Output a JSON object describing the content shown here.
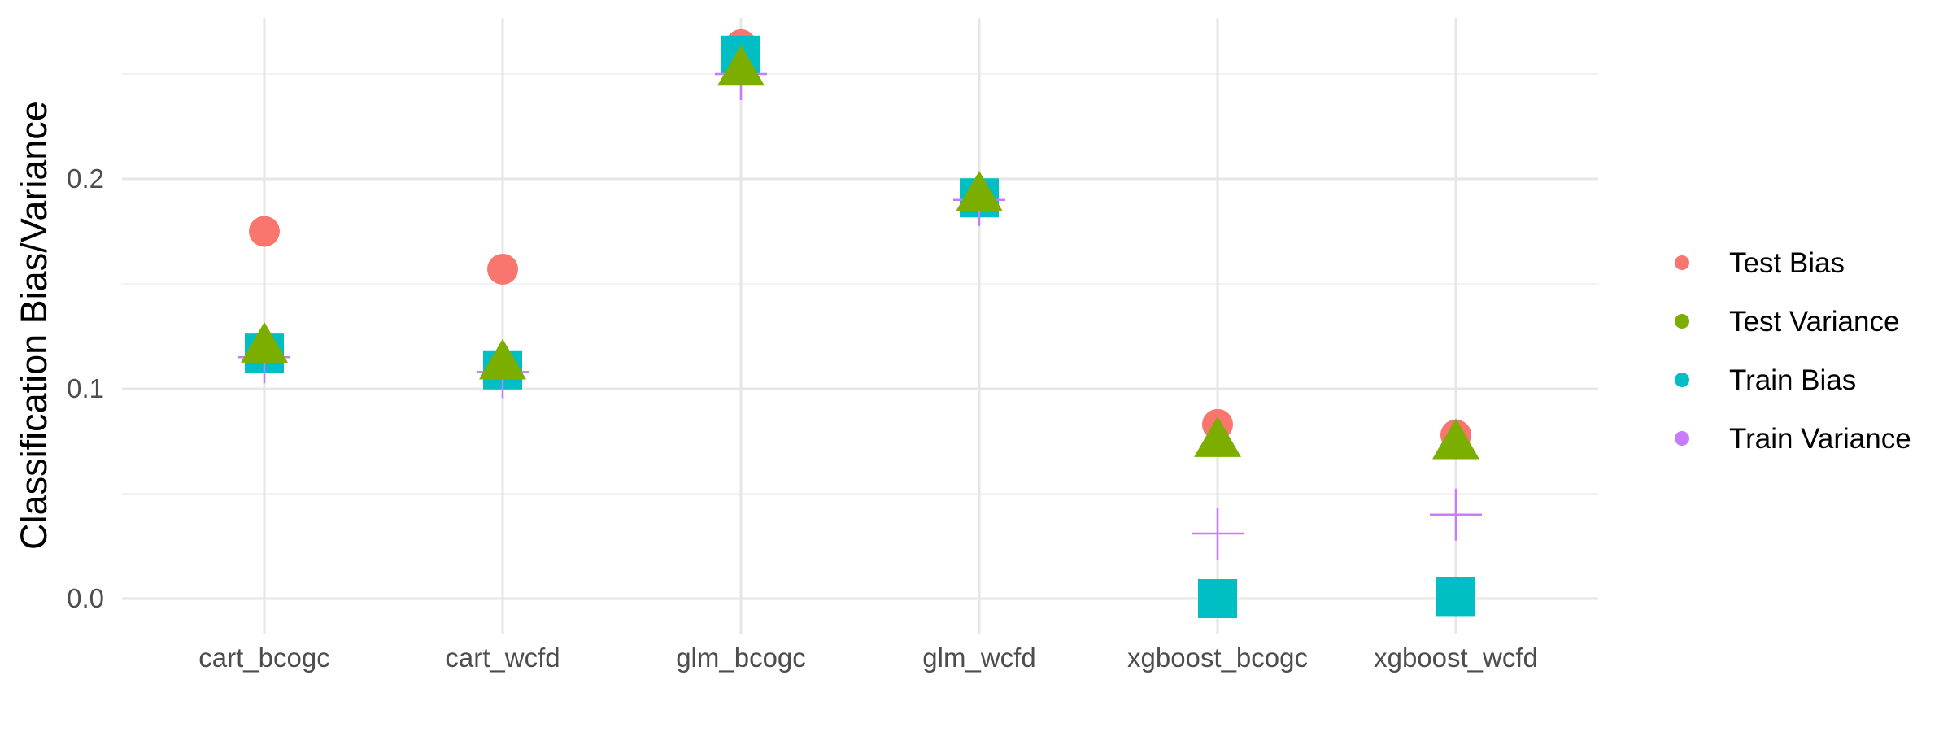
{
  "chart_data": {
    "type": "scatter",
    "title": "",
    "xlabel": "",
    "ylabel": "Classification Bias/Variance",
    "categories": [
      "cart_bcogc",
      "cart_wcfd",
      "glm_bcogc",
      "glm_wcfd",
      "xgboost_bcogc",
      "xgboost_wcfd"
    ],
    "y_ticks": [
      "0.0",
      "0.1",
      "0.2"
    ],
    "ylim": [
      -0.015,
      0.27
    ],
    "grid": true,
    "legend_position": "right",
    "series": [
      {
        "name": "Test Bias",
        "shape": "circle",
        "color": "#F8766D",
        "values": [
          0.175,
          0.157,
          0.264,
          0.192,
          0.083,
          0.078
        ]
      },
      {
        "name": "Train Bias",
        "shape": "square",
        "color": "#00BFC4",
        "values": [
          0.117,
          0.109,
          0.259,
          0.191,
          0.0,
          0.001
        ]
      },
      {
        "name": "Train Variance",
        "shape": "cross",
        "color": "#C77CFF",
        "values": [
          0.115,
          0.108,
          0.25,
          0.19,
          0.031,
          0.04
        ]
      },
      {
        "name": "Test Variance",
        "shape": "triangle",
        "color": "#7CAE00",
        "values": [
          0.121,
          0.113,
          0.253,
          0.193,
          0.076,
          0.075
        ]
      }
    ],
    "legend": [
      {
        "name": "Test Bias",
        "color": "#F8766D"
      },
      {
        "name": "Test Variance",
        "color": "#7CAE00"
      },
      {
        "name": "Train Bias",
        "color": "#00BFC4"
      },
      {
        "name": "Train Variance",
        "color": "#C77CFF"
      }
    ]
  }
}
